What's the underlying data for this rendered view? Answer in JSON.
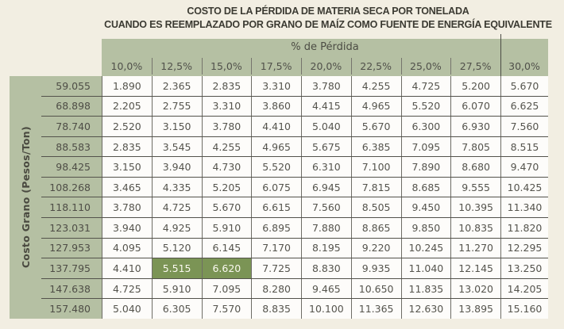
{
  "title": {
    "line1": "COSTO DE LA PÉRDIDA DE MATERIA SECA POR TONELADA",
    "line2": "CUANDO ES REEMPLAZADO POR GRANO DE MAÍZ COMO FUENTE DE ENERGÍA EQUIVALENTE"
  },
  "chart_data": {
    "type": "table",
    "title": "COSTO DE LA PÉRDIDA DE MATERIA SECA POR TONELADA CUANDO ES REEMPLAZADO POR GRANO DE MAÍZ COMO FUENTE DE ENERGÍA EQUIVALENTE",
    "col_group_label": "% de Pérdida",
    "row_axis_label": "Costo Grano (Pesos/Ton)",
    "columns": [
      "10,0%",
      "12,5%",
      "15,0%",
      "17,5%",
      "20,0%",
      "22,5%",
      "25,0%",
      "27,5%",
      "30,0%"
    ],
    "row_headers": [
      "59.055",
      "68.898",
      "78.740",
      "88.583",
      "98.425",
      "108.268",
      "118.110",
      "123.031",
      "127.953",
      "137.795",
      "147.638",
      "157.480"
    ],
    "values": [
      [
        "1.890",
        "2.365",
        "2.835",
        "3.310",
        "3.780",
        "4.255",
        "4.725",
        "5.200",
        "5.670"
      ],
      [
        "2.205",
        "2.755",
        "3.310",
        "3.860",
        "4.415",
        "4.965",
        "5.520",
        "6.070",
        "6.625"
      ],
      [
        "2.520",
        "3.150",
        "3.780",
        "4.410",
        "5.040",
        "5.670",
        "6.300",
        "6.930",
        "7.560"
      ],
      [
        "2.835",
        "3.545",
        "4.255",
        "4.965",
        "5.675",
        "6.385",
        "7.095",
        "7.805",
        "8.515"
      ],
      [
        "3.150",
        "3.940",
        "4.730",
        "5.520",
        "6.310",
        "7.100",
        "7.890",
        "8.680",
        "9.470"
      ],
      [
        "3.465",
        "4.335",
        "5.205",
        "6.075",
        "6.945",
        "7.815",
        "8.685",
        "9.555",
        "10.425"
      ],
      [
        "3.780",
        "4.725",
        "5.670",
        "6.615",
        "7.560",
        "8.505",
        "9.450",
        "10.395",
        "11.340"
      ],
      [
        "3.940",
        "4.925",
        "5.910",
        "6.895",
        "7.880",
        "8.865",
        "9.850",
        "10.835",
        "11.820"
      ],
      [
        "4.095",
        "5.120",
        "6.145",
        "7.170",
        "8.195",
        "9.220",
        "10.245",
        "11.270",
        "12.295"
      ],
      [
        "4.410",
        "5.515",
        "6.620",
        "7.725",
        "8.830",
        "9.935",
        "11.040",
        "12.145",
        "13.250"
      ],
      [
        "4.725",
        "5.910",
        "7.095",
        "8.280",
        "9.465",
        "10.650",
        "11.835",
        "13.020",
        "14.205"
      ],
      [
        "5.040",
        "6.305",
        "7.570",
        "8.835",
        "10.100",
        "11.365",
        "12.630",
        "13.895",
        "15.160"
      ]
    ],
    "highlight_indices": [
      [
        9,
        1
      ],
      [
        9,
        2
      ]
    ],
    "highlighted_cells": [
      {
        "row": "137.795",
        "col": "12,5%",
        "value": "5.515"
      },
      {
        "row": "137.795",
        "col": "15,0%",
        "value": "6.620"
      }
    ],
    "layout_hints": {
      "grid": true,
      "last_column_separated": true
    }
  },
  "colors": {
    "background": "#f2eee2",
    "header_green": "#b5c0a3",
    "highlight_green": "#7b9455",
    "grid_line_horizontal": "#53524b",
    "grid_line_vertical": "#6e6d66",
    "text": "#55544d",
    "title_text": "#3b3a32"
  }
}
